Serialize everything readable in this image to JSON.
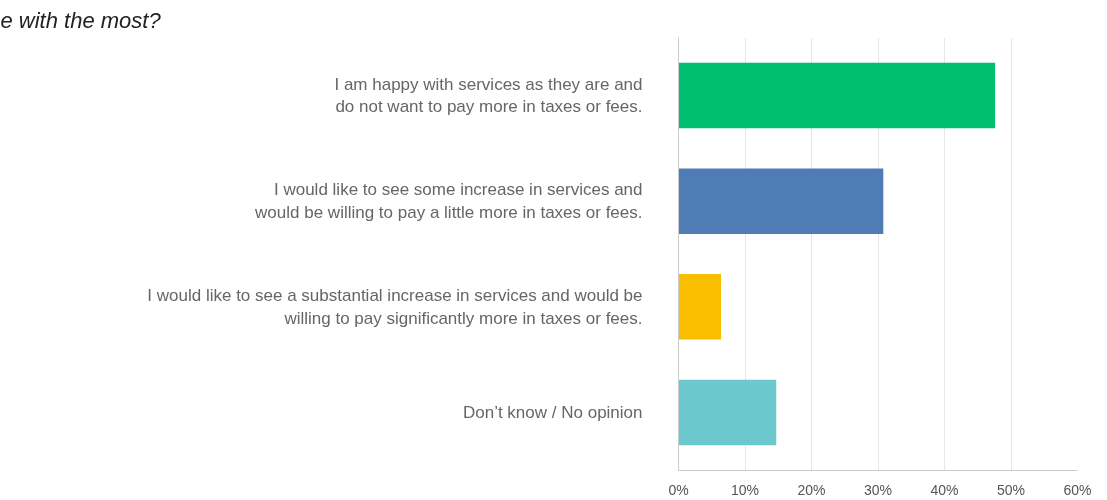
{
  "chart_data": {
    "type": "bar",
    "orientation": "horizontal",
    "title": "e with the most?",
    "categories": [
      "I am happy with services as they are and\ndo not want to pay more in taxes or fees.",
      "I would like to see some increase in services and\nwould be willing to pay a little more in taxes or fees.",
      "I would like to see a substantial increase in services and would be\nwilling to pay significantly more in taxes or fees.",
      "Don’t know / No opinion"
    ],
    "values": [
      47.6,
      30.8,
      6.4,
      14.7
    ],
    "colors": [
      "#00bf6f",
      "#507cb6",
      "#f9be00",
      "#6bc8cd"
    ],
    "xlim": [
      0,
      60
    ],
    "xticks": [
      {
        "value": 0,
        "label": "0%"
      },
      {
        "value": 10,
        "label": "10%"
      },
      {
        "value": 20,
        "label": "20%"
      },
      {
        "value": 30,
        "label": "30%"
      },
      {
        "value": 40,
        "label": "40%"
      },
      {
        "value": 50,
        "label": "50%"
      },
      {
        "value": 60,
        "label": "60%"
      }
    ],
    "grid": "x"
  }
}
